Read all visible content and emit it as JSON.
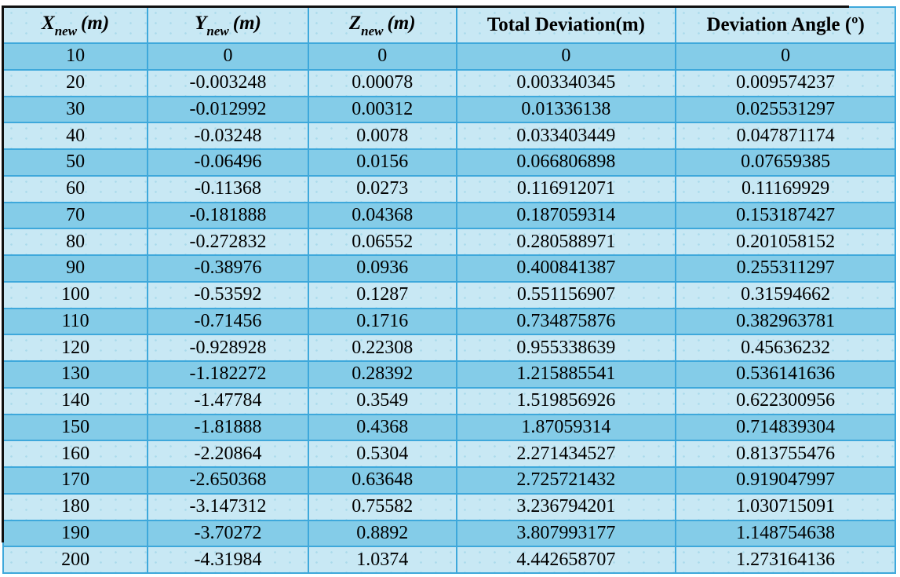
{
  "table": {
    "columns": [
      {
        "variable": "X",
        "subscript": "new",
        "unit": "(m)"
      },
      {
        "variable": "Y",
        "subscript": "new",
        "unit": "(m)"
      },
      {
        "variable": "Z",
        "subscript": "new",
        "unit": "(m)"
      },
      {
        "label": "Total Deviation(m)"
      },
      {
        "label": "Deviation Angle (º)"
      }
    ],
    "rows": [
      [
        "10",
        "0",
        "0",
        "0",
        "0"
      ],
      [
        "20",
        "-0.003248",
        "0.00078",
        "0.003340345",
        "0.009574237"
      ],
      [
        "30",
        "-0.012992",
        "0.00312",
        "0.01336138",
        "0.025531297"
      ],
      [
        "40",
        "-0.03248",
        "0.0078",
        "0.033403449",
        "0.047871174"
      ],
      [
        "50",
        "-0.06496",
        "0.0156",
        "0.066806898",
        "0.07659385"
      ],
      [
        "60",
        "-0.11368",
        "0.0273",
        "0.116912071",
        "0.11169929"
      ],
      [
        "70",
        "-0.181888",
        "0.04368",
        "0.187059314",
        "0.153187427"
      ],
      [
        "80",
        "-0.272832",
        "0.06552",
        "0.280588971",
        "0.201058152"
      ],
      [
        "90",
        "-0.38976",
        "0.0936",
        "0.400841387",
        "0.255311297"
      ],
      [
        "100",
        "-0.53592",
        "0.1287",
        "0.551156907",
        "0.31594662"
      ],
      [
        "110",
        "-0.71456",
        "0.1716",
        "0.734875876",
        "0.382963781"
      ],
      [
        "120",
        "-0.928928",
        "0.22308",
        "0.955338639",
        "0.45636232"
      ],
      [
        "130",
        "-1.182272",
        "0.28392",
        "1.215885541",
        "0.536141636"
      ],
      [
        "140",
        "-1.47784",
        "0.3549",
        "1.519856926",
        "0.622300956"
      ],
      [
        "150",
        "-1.81888",
        "0.4368",
        "1.87059314",
        "0.714839304"
      ],
      [
        "160",
        "-2.20864",
        "0.5304",
        "2.271434527",
        "0.813755476"
      ],
      [
        "170",
        "-2.650368",
        "0.63648",
        "2.725721432",
        "0.919047997"
      ],
      [
        "180",
        "-3.147312",
        "0.75582",
        "3.236794201",
        "1.030715091"
      ],
      [
        "190",
        "-3.70272",
        "0.8892",
        "3.807993177",
        "1.148754638"
      ],
      [
        "200",
        "-4.31984",
        "1.0374",
        "4.442658707",
        "1.273164136"
      ]
    ]
  },
  "colors": {
    "row_dark": "#84cce8",
    "row_light": "#c8e8f4",
    "grid_border": "#3ea8db",
    "outer_edge_dark": "#101010",
    "text": "#000000"
  }
}
